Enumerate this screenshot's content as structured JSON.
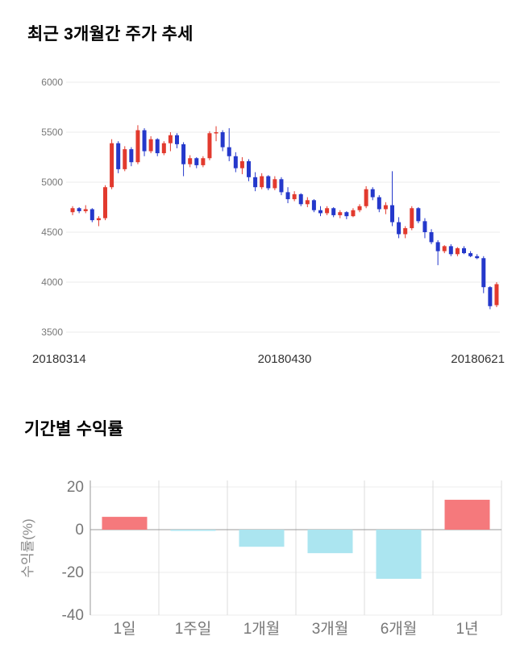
{
  "chart_data": [
    {
      "type": "candlestick",
      "title": "최근 3개월간 주가 추세",
      "x_labels": [
        "20180314",
        "20180430",
        "20180621"
      ],
      "y_ticks": [
        6000,
        5500,
        5000,
        4500,
        4000,
        3500
      ],
      "ylim": [
        3500,
        6000
      ],
      "grid": "horizontal",
      "up_color": "#e23a2e",
      "down_color": "#2438cb",
      "candles": [
        [
          4700,
          4760,
          4670,
          4740
        ],
        [
          4740,
          4750,
          4690,
          4710
        ],
        [
          4710,
          4770,
          4690,
          4730
        ],
        [
          4730,
          4740,
          4600,
          4620
        ],
        [
          4620,
          4660,
          4560,
          4640
        ],
        [
          4640,
          4970,
          4620,
          4950
        ],
        [
          4950,
          5430,
          4930,
          5390
        ],
        [
          5390,
          5410,
          5090,
          5130
        ],
        [
          5130,
          5360,
          5110,
          5330
        ],
        [
          5330,
          5350,
          5160,
          5200
        ],
        [
          5200,
          5570,
          5180,
          5520
        ],
        [
          5520,
          5540,
          5260,
          5310
        ],
        [
          5310,
          5460,
          5290,
          5430
        ],
        [
          5430,
          5440,
          5260,
          5290
        ],
        [
          5290,
          5410,
          5270,
          5390
        ],
        [
          5390,
          5500,
          5310,
          5470
        ],
        [
          5470,
          5490,
          5340,
          5380
        ],
        [
          5380,
          5400,
          5060,
          5180
        ],
        [
          5180,
          5270,
          5150,
          5240
        ],
        [
          5240,
          5250,
          5140,
          5170
        ],
        [
          5170,
          5260,
          5150,
          5240
        ],
        [
          5240,
          5510,
          5220,
          5490
        ],
        [
          5490,
          5560,
          5410,
          5500
        ],
        [
          5500,
          5520,
          5310,
          5350
        ],
        [
          5350,
          5540,
          5210,
          5260
        ],
        [
          5260,
          5300,
          5100,
          5140
        ],
        [
          5140,
          5250,
          5080,
          5210
        ],
        [
          5210,
          5230,
          5010,
          5050
        ],
        [
          5050,
          5100,
          4910,
          4950
        ],
        [
          4950,
          5090,
          4930,
          5060
        ],
        [
          5060,
          5070,
          4920,
          4940
        ],
        [
          4940,
          5060,
          4920,
          5030
        ],
        [
          5030,
          5050,
          4870,
          4900
        ],
        [
          4900,
          4950,
          4790,
          4830
        ],
        [
          4830,
          4910,
          4810,
          4880
        ],
        [
          4880,
          4890,
          4760,
          4780
        ],
        [
          4780,
          4850,
          4750,
          4820
        ],
        [
          4820,
          4830,
          4700,
          4720
        ],
        [
          4720,
          4760,
          4660,
          4690
        ],
        [
          4690,
          4760,
          4670,
          4740
        ],
        [
          4740,
          4750,
          4650,
          4670
        ],
        [
          4670,
          4720,
          4640,
          4700
        ],
        [
          4700,
          4710,
          4630,
          4660
        ],
        [
          4660,
          4740,
          4650,
          4720
        ],
        [
          4720,
          4780,
          4700,
          4760
        ],
        [
          4760,
          4960,
          4740,
          4930
        ],
        [
          4930,
          4950,
          4820,
          4850
        ],
        [
          4850,
          4870,
          4700,
          4730
        ],
        [
          4730,
          4800,
          4680,
          4770
        ],
        [
          4770,
          5110,
          4560,
          4600
        ],
        [
          4600,
          4650,
          4440,
          4480
        ],
        [
          4480,
          4560,
          4440,
          4540
        ],
        [
          4540,
          4760,
          4520,
          4740
        ],
        [
          4740,
          4750,
          4590,
          4610
        ],
        [
          4610,
          4640,
          4440,
          4500
        ],
        [
          4500,
          4530,
          4380,
          4400
        ],
        [
          4400,
          4420,
          4170,
          4310
        ],
        [
          4310,
          4370,
          4290,
          4360
        ],
        [
          4360,
          4380,
          4260,
          4280
        ],
        [
          4280,
          4350,
          4260,
          4340
        ],
        [
          4340,
          4360,
          4280,
          4290
        ],
        [
          4290,
          4310,
          4250,
          4260
        ],
        [
          4260,
          4280,
          4230,
          4240
        ],
        [
          4240,
          4260,
          3890,
          3950
        ],
        [
          3950,
          3960,
          3730,
          3760
        ],
        [
          3770,
          4000,
          3750,
          3980
        ]
      ]
    },
    {
      "type": "bar",
      "title": "기간별 수익률",
      "ylabel": "수익률(%)",
      "categories": [
        "1일",
        "1주일",
        "1개월",
        "3개월",
        "6개월",
        "1년"
      ],
      "values": [
        6,
        -0.5,
        -8,
        -11,
        -23,
        14
      ],
      "y_ticks": [
        20,
        0,
        -20,
        -40
      ],
      "ylim": [
        -40,
        20
      ],
      "grid": "vertical-separators",
      "positive_color": "#f5797c",
      "negative_color": "#abe5f0",
      "axis_color": "#999999",
      "tick_label_color": "#777777"
    }
  ]
}
